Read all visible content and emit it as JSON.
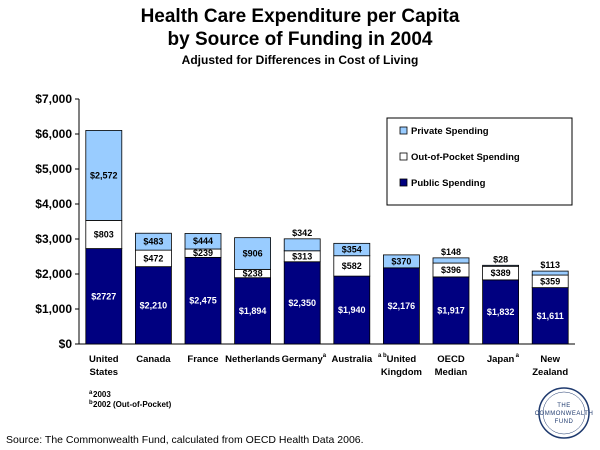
{
  "chart_data": {
    "type": "bar",
    "stacked": true,
    "title": [
      "Health Care Expenditure per Capita",
      "by Source of Funding in 2004"
    ],
    "subtitle": "Adjusted for Differences in Cost of Living",
    "ylim": [
      0,
      7000
    ],
    "yticks": [
      "$0",
      "$1,000",
      "$2,000",
      "$3,000",
      "$4,000",
      "$5,000",
      "$6,000",
      "$7,000"
    ],
    "grid": false,
    "legend_position": "top-right",
    "categories": [
      {
        "lines": [
          "United",
          "States"
        ],
        "note": ""
      },
      {
        "lines": [
          "Canada"
        ],
        "note": ""
      },
      {
        "lines": [
          "France"
        ],
        "note": ""
      },
      {
        "lines": [
          "Netherlands"
        ],
        "note": ""
      },
      {
        "lines": [
          "Germany"
        ],
        "note": "a"
      },
      {
        "lines": [
          "Australia"
        ],
        "note": "a b"
      },
      {
        "lines": [
          "United",
          "Kingdom"
        ],
        "note": ""
      },
      {
        "lines": [
          "OECD",
          "Median"
        ],
        "note": ""
      },
      {
        "lines": [
          "Japan"
        ],
        "note": "a"
      },
      {
        "lines": [
          "New",
          "Zealand"
        ],
        "note": ""
      }
    ],
    "series": [
      {
        "name": "Public Spending",
        "color": "#000080",
        "values": [
          2727,
          2210,
          2475,
          1894,
          2350,
          1940,
          2176,
          1917,
          1832,
          1611
        ],
        "labels": [
          "$2727",
          "$2,210",
          "$2,475",
          "$1,894",
          "$2,350",
          "$1,940",
          "$2,176",
          "$1,917",
          "$1,832",
          "$1,611"
        ]
      },
      {
        "name": "Out-of-Pocket Spending",
        "color": "#ffffff",
        "values": [
          803,
          472,
          239,
          238,
          313,
          582,
          0,
          396,
          389,
          359
        ],
        "labels": [
          "$803",
          "$472",
          "$239",
          "$238",
          "$313",
          "$582",
          "",
          "$396",
          "$389",
          "$359"
        ]
      },
      {
        "name": "Private Spending",
        "color": "#99ccff",
        "values": [
          2572,
          483,
          444,
          906,
          342,
          354,
          370,
          148,
          28,
          113
        ],
        "labels": [
          "$2,572",
          "$483",
          "$444",
          "$906",
          "$342",
          "$354",
          "$370",
          "$148",
          "$28",
          "$113"
        ]
      }
    ],
    "legend_order": [
      "Private Spending",
      "Out-of-Pocket Spending",
      "Public Spending"
    ],
    "footnotes": [
      {
        "mark": "a",
        "text": "2003"
      },
      {
        "mark": "b",
        "text": "2002 (Out-of-Pocket)"
      }
    ]
  },
  "source": "Source: The Commonwealth Fund, calculated from OECD Health Data 2006.",
  "logo": {
    "lines": [
      "THE",
      "COMMONWEALTH",
      "FUND"
    ]
  }
}
